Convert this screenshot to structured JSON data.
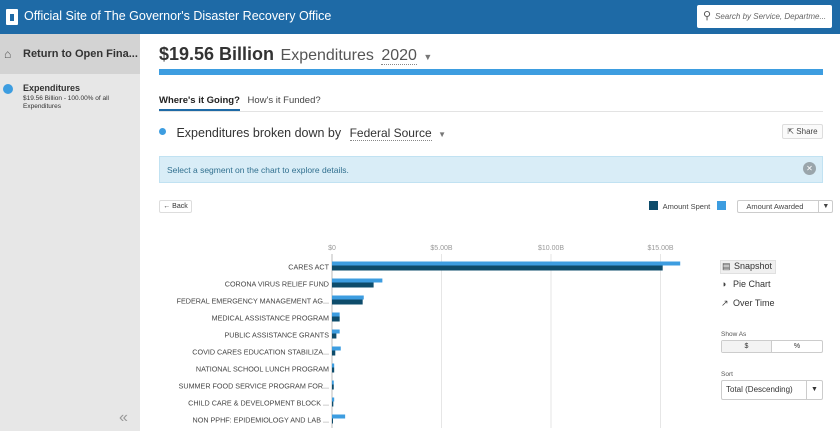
{
  "header": {
    "title": "Official Site of The Governor's Disaster Recovery Office",
    "search_placeholder": "Search by Service, Departme..."
  },
  "sidebar": {
    "back_label": "Return to Open Fina...",
    "item_name": "Expenditures",
    "item_sub": "$19.56 Billion - 100.00% of all Expenditures",
    "collapse_glyph": "«"
  },
  "summary": {
    "amount": "$19.56 Billion",
    "label": "Expenditures",
    "year": "2020",
    "progress_fraction": 1.0
  },
  "tabs": [
    {
      "label": "Where's it Going?",
      "active": true
    },
    {
      "label": "How's it Funded?",
      "active": false
    }
  ],
  "breakdown": {
    "prefix": "Expenditures broken down by",
    "selected": "Federal Source"
  },
  "share_label": "Share",
  "info_message": "Select a segment on the chart to explore details.",
  "back_button_label": "← Back",
  "legend": {
    "spent_label": "Amount Spent",
    "awarded_label": "Amount Awarded"
  },
  "colors": {
    "spent": "#0e4c6b",
    "awarded": "#3d9de0",
    "header": "#1e6aa6"
  },
  "right_panel": {
    "views": [
      {
        "label": "Snapshot",
        "icon": "bar-chart-icon",
        "active": true
      },
      {
        "label": "Pie Chart",
        "icon": "pie-chart-icon",
        "active": false
      },
      {
        "label": "Over Time",
        "icon": "line-chart-icon",
        "active": false
      }
    ],
    "show_as_label": "Show As",
    "show_as_options": [
      "$",
      "%"
    ],
    "sort_label": "Sort",
    "sort_value": "Total (Descending)"
  },
  "chart_data": {
    "type": "bar",
    "orientation": "horizontal",
    "x_ticks": [
      "$0",
      "$5.00B",
      "$10.00B",
      "$15.00B"
    ],
    "xlim": [
      0,
      20
    ],
    "unit": "billions USD",
    "categories": [
      "CARES ACT",
      "CORONA VIRUS RELIEF FUND",
      "FEDERAL EMERGENCY MANAGEMENT AG...",
      "MEDICAL ASSISTANCE PROGRAM",
      "PUBLIC ASSISTANCE GRANTS",
      "COVID CARES EDUCATION STABILIZA...",
      "NATIONAL SCHOOL LUNCH PROGRAM",
      "SUMMER FOOD SERVICE PROGRAM FOR...",
      "CHILD CARE & DEVELOPMENT BLOCK ...",
      "NON PPHF: EPIDEMIOLOGY AND LAB ..."
    ],
    "series": [
      {
        "name": "Amount Spent",
        "values": [
          15.1,
          1.9,
          1.4,
          0.35,
          0.2,
          0.15,
          0.1,
          0.08,
          0.06,
          0.04
        ]
      },
      {
        "name": "Amount Awarded",
        "values": [
          15.9,
          2.3,
          1.45,
          0.35,
          0.35,
          0.4,
          0.1,
          0.08,
          0.1,
          0.6
        ]
      }
    ],
    "grid": true,
    "legend": "top-right"
  }
}
